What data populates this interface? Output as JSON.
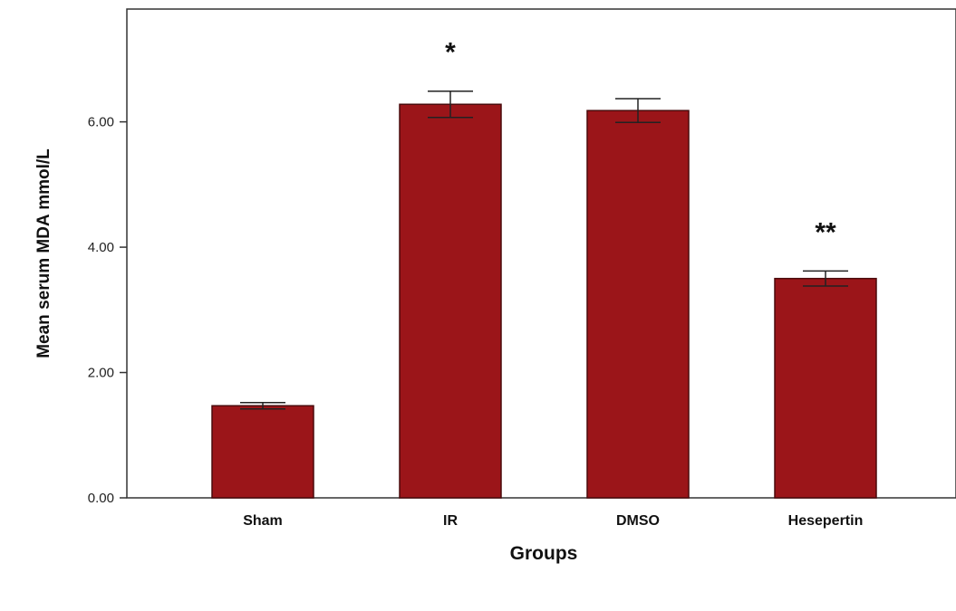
{
  "chart_data": {
    "type": "bar",
    "title": "",
    "xlabel": "Groups",
    "ylabel": "Mean serum MDA mmol/L",
    "categories": [
      "Sham",
      "IR",
      "DMSO",
      "Hesepertin"
    ],
    "values": [
      1.47,
      6.28,
      6.18,
      3.5
    ],
    "error": [
      0.05,
      0.21,
      0.19,
      0.12
    ],
    "annotations": [
      "",
      "*",
      "",
      "**"
    ],
    "y_ticks": [
      "0.00",
      "2.00",
      "4.00",
      "6.00"
    ],
    "y_tick_values": [
      0,
      2,
      4,
      6
    ],
    "ylim": [
      0,
      7.8
    ],
    "grid": false,
    "legend": "none",
    "colors": {
      "bar": "#9b1519",
      "bar_edge": "#4a0a0c",
      "axis": "#333333"
    }
  }
}
